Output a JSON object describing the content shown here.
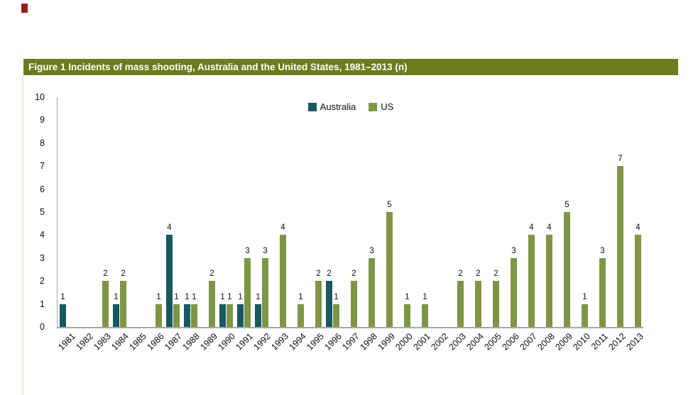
{
  "figure": {
    "title_bar_color": "#6e7b1e",
    "border_color": "#e6eed8",
    "marker_color": "#9e1b15"
  },
  "chart_data": {
    "type": "bar",
    "title": "Figure 1 Incidents of mass shooting, Australia and the United States, 1981–2013 (n)",
    "categories": [
      "1981",
      "1982",
      "1983",
      "1984",
      "1985",
      "1986",
      "1987",
      "1988",
      "1989",
      "1990",
      "1991",
      "1992",
      "1993",
      "1994",
      "1995",
      "1996",
      "1997",
      "1998",
      "1999",
      "2000",
      "2001",
      "2002",
      "2003",
      "2004",
      "2005",
      "2006",
      "2007",
      "2008",
      "2009",
      "2010",
      "2011",
      "2012",
      "2013"
    ],
    "series": [
      {
        "name": "Australia",
        "color": "#175962",
        "values": [
          1,
          0,
          0,
          1,
          0,
          0,
          4,
          1,
          0,
          1,
          1,
          1,
          0,
          0,
          0,
          2,
          0,
          0,
          0,
          0,
          0,
          0,
          0,
          0,
          0,
          0,
          0,
          0,
          0,
          0,
          0,
          0,
          0
        ]
      },
      {
        "name": "US",
        "color": "#7e9644",
        "values": [
          0,
          0,
          2,
          2,
          0,
          1,
          1,
          1,
          2,
          1,
          3,
          3,
          4,
          1,
          2,
          1,
          2,
          3,
          5,
          1,
          1,
          0,
          2,
          2,
          2,
          3,
          4,
          4,
          5,
          1,
          3,
          7,
          4
        ]
      }
    ],
    "xlabel": "",
    "ylabel": "",
    "ylim": [
      0,
      10
    ],
    "y_ticks": [
      0,
      1,
      2,
      3,
      4,
      5,
      6,
      7,
      8,
      9,
      10
    ],
    "bar_labels": true,
    "grid": false,
    "legend_position": "top-center",
    "axis_color": "#a6a6a6"
  }
}
